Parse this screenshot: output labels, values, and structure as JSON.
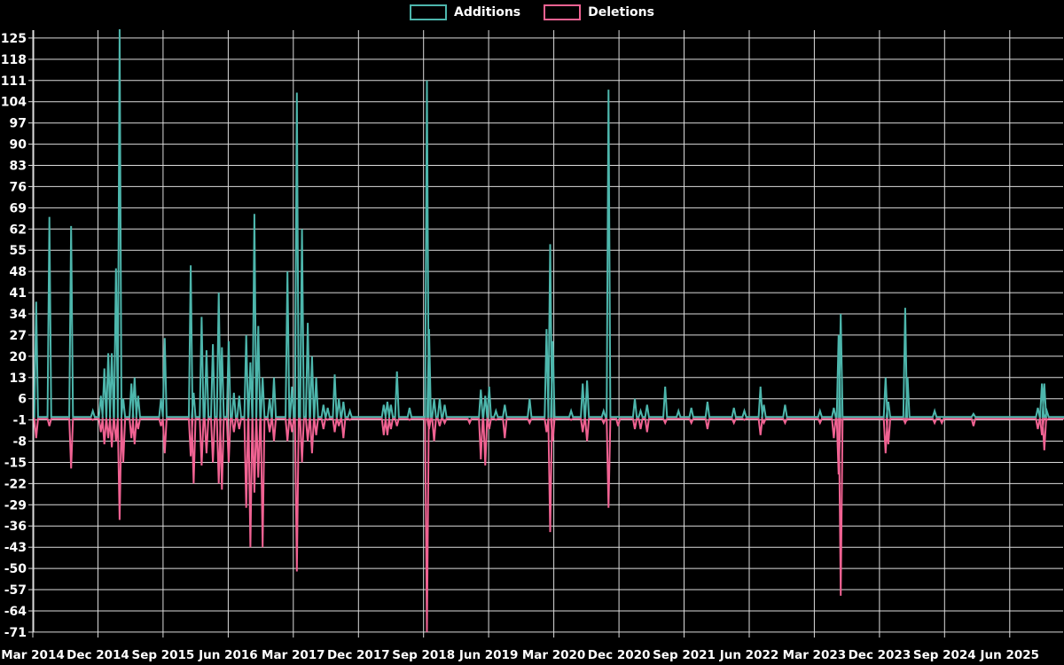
{
  "legend": {
    "additions_label": "Additions",
    "deletions_label": "Deletions"
  },
  "colors": {
    "background": "#000000",
    "additions": "#4DB6AC",
    "deletions": "#F06292",
    "grid": "#DCDCDC",
    "text": "#FFFFFF"
  },
  "chart_data": {
    "type": "line",
    "title": "",
    "xlabel": "",
    "ylabel": "",
    "grid": true,
    "legend_position": "top-center",
    "y_axis": {
      "min": -71,
      "max": 125,
      "tick_step": 7,
      "ticks": [
        125,
        118,
        111,
        104,
        97,
        90,
        83,
        76,
        69,
        62,
        55,
        48,
        41,
        34,
        27,
        20,
        13,
        6,
        -1,
        -8,
        -15,
        -22,
        -29,
        -36,
        -43,
        -50,
        -57,
        -64,
        -71
      ]
    },
    "x_axis": {
      "tick_interval_months": 9,
      "tick_labels": [
        "Mar 2014",
        "Dec 2014",
        "Sep 2015",
        "Jun 2016",
        "Mar 2017",
        "Dec 2017",
        "Sep 2018",
        "Jun 2019",
        "Mar 2020",
        "Dec 2020",
        "Sep 2021",
        "Jun 2022",
        "Mar 2023",
        "Dec 2023",
        "Sep 2024",
        "Jun 2025"
      ]
    },
    "series": [
      {
        "name": "Additions",
        "color_key": "additions",
        "baseline_value": 0
      },
      {
        "name": "Deletions",
        "color_key": "deletions",
        "baseline_value": -0.6
      }
    ],
    "points_format": [
      "date",
      "additions",
      "deletions"
    ],
    "points": [
      [
        "2014-02-25",
        69,
        -2
      ],
      [
        "2014-03-15",
        38,
        -7
      ],
      [
        "2014-05-10",
        66,
        -3
      ],
      [
        "2014-08-10",
        63,
        -17
      ],
      [
        "2014-11-10",
        2,
        -1
      ],
      [
        "2014-12-13",
        7,
        -5
      ],
      [
        "2014-12-28",
        16,
        -9
      ],
      [
        "2015-01-14",
        21,
        -7
      ],
      [
        "2015-01-29",
        21,
        -10
      ],
      [
        "2015-02-16",
        49,
        -8
      ],
      [
        "2015-03-01",
        128,
        -34
      ],
      [
        "2015-03-16",
        6,
        -15
      ],
      [
        "2015-04-20",
        11,
        -7
      ],
      [
        "2015-05-03",
        13,
        -9
      ],
      [
        "2015-05-18",
        7,
        -4
      ],
      [
        "2015-08-23",
        6,
        -3
      ],
      [
        "2015-09-08",
        26,
        -12
      ],
      [
        "2015-12-26",
        50,
        -13
      ],
      [
        "2016-01-08",
        8,
        -22
      ],
      [
        "2016-02-11",
        33,
        -16
      ],
      [
        "2016-03-01",
        22,
        -12
      ],
      [
        "2016-03-28",
        24,
        -15
      ],
      [
        "2016-04-22",
        41,
        -22
      ],
      [
        "2016-05-05",
        23,
        -24
      ],
      [
        "2016-06-03",
        25,
        -15
      ],
      [
        "2016-06-25",
        8,
        -5
      ],
      [
        "2016-07-17",
        7,
        -4
      ],
      [
        "2016-08-16",
        27,
        -30
      ],
      [
        "2016-09-03",
        18,
        -43
      ],
      [
        "2016-09-20",
        67,
        -25
      ],
      [
        "2016-10-06",
        30,
        -20
      ],
      [
        "2016-10-24",
        13,
        -43
      ],
      [
        "2016-11-23",
        6,
        -5
      ],
      [
        "2016-12-11",
        13,
        -8
      ],
      [
        "2017-02-07",
        48,
        -8
      ],
      [
        "2017-02-26",
        10,
        -5
      ],
      [
        "2017-03-16",
        107,
        -51
      ],
      [
        "2017-04-07",
        62,
        -15
      ],
      [
        "2017-05-01",
        31,
        -8
      ],
      [
        "2017-05-19",
        20,
        -12
      ],
      [
        "2017-06-06",
        13,
        -6
      ],
      [
        "2017-07-06",
        4,
        -4
      ],
      [
        "2017-07-24",
        3,
        -1
      ],
      [
        "2017-08-23",
        14,
        -5
      ],
      [
        "2017-09-10",
        6,
        -3
      ],
      [
        "2017-09-29",
        5,
        -7
      ],
      [
        "2017-10-26",
        2,
        -1
      ],
      [
        "2018-03-16",
        4,
        -6
      ],
      [
        "2018-04-01",
        5,
        -6
      ],
      [
        "2018-04-16",
        4,
        -4
      ],
      [
        "2018-05-11",
        15,
        -3
      ],
      [
        "2018-07-03",
        3,
        -1
      ],
      [
        "2018-09-15",
        111,
        -71
      ],
      [
        "2018-09-24",
        29,
        -4
      ],
      [
        "2018-10-15",
        6,
        -8
      ],
      [
        "2018-11-08",
        6,
        -3
      ],
      [
        "2018-11-29",
        4,
        -2
      ],
      [
        "2019-03-12",
        0,
        -2
      ],
      [
        "2019-04-29",
        9,
        -14
      ],
      [
        "2019-05-17",
        7,
        -16
      ],
      [
        "2019-06-03",
        10,
        -4
      ],
      [
        "2019-07-01",
        2,
        -1
      ],
      [
        "2019-08-08",
        4,
        -7
      ],
      [
        "2019-11-21",
        6,
        -2
      ],
      [
        "2020-02-01",
        29,
        -5
      ],
      [
        "2020-02-16",
        57,
        -38
      ],
      [
        "2020-02-27",
        25,
        -8
      ],
      [
        "2020-05-13",
        2,
        -1
      ],
      [
        "2020-07-01",
        11,
        -5
      ],
      [
        "2020-07-19",
        12,
        -8
      ],
      [
        "2020-09-28",
        2,
        -2
      ],
      [
        "2020-10-18",
        108,
        -30
      ],
      [
        "2020-11-28",
        0,
        -3
      ],
      [
        "2021-02-07",
        6,
        -4
      ],
      [
        "2021-03-01",
        2,
        -4
      ],
      [
        "2021-03-28",
        4,
        -5
      ],
      [
        "2021-06-13",
        10,
        -2
      ],
      [
        "2021-08-08",
        2,
        0
      ],
      [
        "2021-10-01",
        3,
        -2
      ],
      [
        "2021-12-08",
        5,
        -4
      ],
      [
        "2022-03-28",
        3,
        -2
      ],
      [
        "2022-05-11",
        2,
        -1
      ],
      [
        "2022-07-18",
        10,
        -6
      ],
      [
        "2022-08-02",
        4,
        -2
      ],
      [
        "2022-10-30",
        4,
        -2
      ],
      [
        "2023-03-25",
        2,
        -2
      ],
      [
        "2023-05-22",
        3,
        -7
      ],
      [
        "2023-06-12",
        27,
        -19
      ],
      [
        "2023-06-21",
        34,
        -59
      ],
      [
        "2023-12-27",
        13,
        -12
      ],
      [
        "2024-01-08",
        5,
        -9
      ],
      [
        "2024-03-18",
        36,
        -2
      ],
      [
        "2024-03-28",
        13,
        -1
      ],
      [
        "2024-07-20",
        2,
        -2
      ],
      [
        "2024-08-20",
        0,
        -2
      ],
      [
        "2025-01-01",
        1,
        -3
      ],
      [
        "2025-09-28",
        3,
        -4
      ],
      [
        "2025-10-15",
        11,
        -6
      ],
      [
        "2025-10-25",
        11,
        -11
      ],
      [
        "2025-11-05",
        2,
        -1
      ]
    ]
  }
}
